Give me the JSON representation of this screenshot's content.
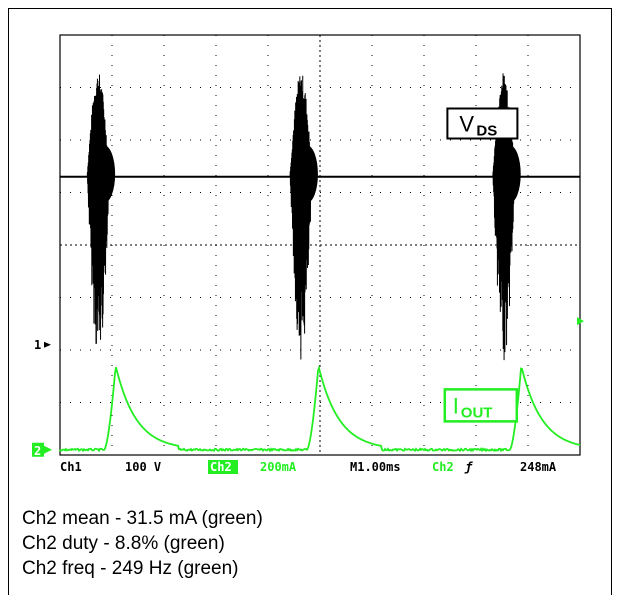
{
  "chart_data": {
    "type": "line",
    "title": "",
    "grid": true,
    "x_divisions": 10,
    "y_divisions": 8,
    "xlim": [
      0,
      10
    ],
    "ylim": [
      -4,
      4
    ],
    "x_unit": "div (1.00 ms/div)",
    "series": [
      {
        "name": "V_DS",
        "color": "#000000",
        "baseline_div": 1.3,
        "burst_centers_div": [
          0.8,
          4.7,
          8.6
        ],
        "burst_top_div": 3.3,
        "burst_bottom_div": -2.2
      },
      {
        "name": "I_OUT",
        "color": "#22ee22",
        "baseline_div": -3.9,
        "pulse_starts_div": [
          0.85,
          4.75,
          8.65
        ],
        "pulse_peak_div": -2.3
      }
    ],
    "trace_labels": [
      "V",
      "DS",
      "I",
      "OUT"
    ],
    "markers": {
      "ch1_ground": "1",
      "ch2_ground": "2"
    },
    "status_bar": {
      "ch1": "Ch1",
      "ch1_scale": "100 V",
      "ch2": "Ch2",
      "ch2_scale": "200mA",
      "timebase": "M1.00ms",
      "trigger_source": "Ch2",
      "trigger_slope": "ƒ",
      "trigger_level": "248mA"
    },
    "colors": {
      "screen": "#ffffff",
      "ch1": "#000000",
      "ch2": "#22ee22"
    }
  },
  "notes": [
    "Ch2 mean - 31.5 mA (green)",
    "Ch2 duty - 8.8% (green)",
    "Ch2 freq - 249 Hz (green)"
  ]
}
